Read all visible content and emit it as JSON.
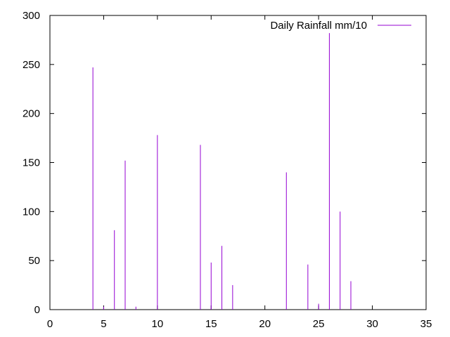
{
  "chart_data": {
    "type": "impulse",
    "series": [
      {
        "name": "Daily Rainfall mm/10",
        "color": "#9400d3",
        "x": [
          4,
          5,
          6,
          7,
          8,
          10,
          14,
          15,
          16,
          17,
          22,
          24,
          25,
          26,
          27,
          28
        ],
        "y": [
          247,
          3,
          81,
          152,
          3,
          178,
          168,
          48,
          65,
          25,
          140,
          46,
          6,
          282,
          100,
          29
        ]
      }
    ],
    "xlim": [
      0,
      35
    ],
    "ylim": [
      0,
      300
    ],
    "x_ticks": [
      0,
      5,
      10,
      15,
      20,
      25,
      30,
      35
    ],
    "y_ticks": [
      0,
      50,
      100,
      150,
      200,
      250,
      300
    ],
    "grid": false,
    "legend_position": "top-right",
    "title": "",
    "xlabel": "",
    "ylabel": ""
  }
}
